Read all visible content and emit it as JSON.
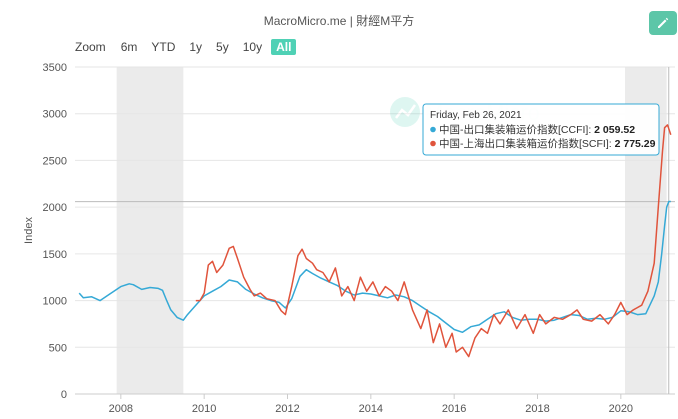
{
  "header": {
    "title": "MacroMicro.me | 財經M平方"
  },
  "edit_icon": "pencil-icon",
  "zoom": {
    "label": "Zoom",
    "options": [
      "6m",
      "YTD",
      "1y",
      "5y",
      "10y",
      "All"
    ],
    "selected": "All"
  },
  "watermark": "MacroMicro",
  "tooltip": {
    "date": "Friday, Feb 26, 2021",
    "rows": [
      {
        "label": "中国-出口集装箱运价指数[CCFI]: ",
        "value": "2 059.52",
        "color": "#35a9d6"
      },
      {
        "label": "中国-上海出口集装箱运价指数[SCFI]: ",
        "value": "2 775.29",
        "color": "#e0543c"
      }
    ]
  },
  "chart_data": {
    "type": "line",
    "ylabel": "Index",
    "ylim": [
      0,
      3500
    ],
    "yticks": [
      "0",
      "500",
      "1000",
      "1500",
      "2000",
      "2500",
      "3000",
      "3500"
    ],
    "xlim": [
      2006.9,
      2021.3
    ],
    "xticks": [
      "2008",
      "2010",
      "2012",
      "2014",
      "2016",
      "2018",
      "2020"
    ],
    "grid": "horizontal",
    "shaded_periods": [
      [
        2007.9,
        2009.5
      ],
      [
        2020.1,
        2021.1
      ]
    ],
    "crosshair": {
      "x": 2021.15,
      "y": 2059.52
    },
    "series": [
      {
        "name": "中国-出口集装箱运价指数[CCFI]",
        "color": "#35a9d6",
        "points": [
          [
            2007.0,
            1080
          ],
          [
            2007.1,
            1030
          ],
          [
            2007.3,
            1040
          ],
          [
            2007.5,
            1000
          ],
          [
            2007.7,
            1060
          ],
          [
            2007.9,
            1120
          ],
          [
            2008.0,
            1150
          ],
          [
            2008.2,
            1180
          ],
          [
            2008.3,
            1170
          ],
          [
            2008.5,
            1120
          ],
          [
            2008.7,
            1140
          ],
          [
            2008.9,
            1130
          ],
          [
            2009.0,
            1110
          ],
          [
            2009.1,
            1000
          ],
          [
            2009.2,
            900
          ],
          [
            2009.35,
            820
          ],
          [
            2009.5,
            790
          ],
          [
            2009.6,
            850
          ],
          [
            2009.8,
            950
          ],
          [
            2010.0,
            1050
          ],
          [
            2010.2,
            1100
          ],
          [
            2010.4,
            1150
          ],
          [
            2010.6,
            1220
          ],
          [
            2010.8,
            1200
          ],
          [
            2011.0,
            1120
          ],
          [
            2011.2,
            1070
          ],
          [
            2011.4,
            1030
          ],
          [
            2011.6,
            1000
          ],
          [
            2011.8,
            980
          ],
          [
            2011.95,
            920
          ],
          [
            2012.1,
            1020
          ],
          [
            2012.3,
            1260
          ],
          [
            2012.45,
            1330
          ],
          [
            2012.6,
            1290
          ],
          [
            2012.8,
            1240
          ],
          [
            2013.0,
            1200
          ],
          [
            2013.2,
            1160
          ],
          [
            2013.4,
            1100
          ],
          [
            2013.6,
            1060
          ],
          [
            2013.8,
            1080
          ],
          [
            2014.0,
            1070
          ],
          [
            2014.2,
            1050
          ],
          [
            2014.4,
            1030
          ],
          [
            2014.6,
            1060
          ],
          [
            2014.8,
            1040
          ],
          [
            2015.0,
            1000
          ],
          [
            2015.2,
            940
          ],
          [
            2015.4,
            880
          ],
          [
            2015.6,
            830
          ],
          [
            2015.8,
            760
          ],
          [
            2016.0,
            690
          ],
          [
            2016.2,
            660
          ],
          [
            2016.4,
            720
          ],
          [
            2016.6,
            740
          ],
          [
            2016.8,
            800
          ],
          [
            2017.0,
            860
          ],
          [
            2017.2,
            880
          ],
          [
            2017.4,
            820
          ],
          [
            2017.6,
            790
          ],
          [
            2017.8,
            800
          ],
          [
            2018.0,
            800
          ],
          [
            2018.2,
            780
          ],
          [
            2018.4,
            790
          ],
          [
            2018.6,
            820
          ],
          [
            2018.8,
            850
          ],
          [
            2019.0,
            840
          ],
          [
            2019.2,
            800
          ],
          [
            2019.4,
            810
          ],
          [
            2019.6,
            800
          ],
          [
            2019.8,
            820
          ],
          [
            2020.0,
            890
          ],
          [
            2020.2,
            880
          ],
          [
            2020.4,
            850
          ],
          [
            2020.6,
            860
          ],
          [
            2020.8,
            1050
          ],
          [
            2020.9,
            1200
          ],
          [
            2020.98,
            1500
          ],
          [
            2021.05,
            1800
          ],
          [
            2021.1,
            2000
          ],
          [
            2021.15,
            2060
          ],
          [
            2021.2,
            2060
          ]
        ]
      },
      {
        "name": "中国-上海出口集装箱运价指数[SCFI]",
        "color": "#e0543c",
        "points": [
          [
            2009.8,
            1000
          ],
          [
            2009.9,
            1000
          ],
          [
            2010.0,
            1080
          ],
          [
            2010.1,
            1380
          ],
          [
            2010.2,
            1420
          ],
          [
            2010.3,
            1300
          ],
          [
            2010.45,
            1380
          ],
          [
            2010.6,
            1560
          ],
          [
            2010.7,
            1580
          ],
          [
            2010.8,
            1450
          ],
          [
            2010.95,
            1250
          ],
          [
            2011.1,
            1120
          ],
          [
            2011.2,
            1050
          ],
          [
            2011.35,
            1080
          ],
          [
            2011.5,
            1020
          ],
          [
            2011.7,
            1000
          ],
          [
            2011.85,
            890
          ],
          [
            2011.95,
            850
          ],
          [
            2012.1,
            1150
          ],
          [
            2012.25,
            1480
          ],
          [
            2012.35,
            1550
          ],
          [
            2012.45,
            1450
          ],
          [
            2012.6,
            1400
          ],
          [
            2012.7,
            1330
          ],
          [
            2012.85,
            1300
          ],
          [
            2013.0,
            1200
          ],
          [
            2013.15,
            1350
          ],
          [
            2013.3,
            1050
          ],
          [
            2013.45,
            1150
          ],
          [
            2013.6,
            1000
          ],
          [
            2013.75,
            1250
          ],
          [
            2013.9,
            1100
          ],
          [
            2014.05,
            1200
          ],
          [
            2014.2,
            1050
          ],
          [
            2014.35,
            1150
          ],
          [
            2014.5,
            1100
          ],
          [
            2014.65,
            1000
          ],
          [
            2014.8,
            1200
          ],
          [
            2015.0,
            900
          ],
          [
            2015.2,
            700
          ],
          [
            2015.35,
            900
          ],
          [
            2015.5,
            550
          ],
          [
            2015.65,
            750
          ],
          [
            2015.8,
            500
          ],
          [
            2015.95,
            650
          ],
          [
            2016.05,
            450
          ],
          [
            2016.2,
            500
          ],
          [
            2016.35,
            400
          ],
          [
            2016.5,
            600
          ],
          [
            2016.65,
            700
          ],
          [
            2016.8,
            650
          ],
          [
            2016.95,
            850
          ],
          [
            2017.1,
            750
          ],
          [
            2017.3,
            900
          ],
          [
            2017.5,
            700
          ],
          [
            2017.7,
            850
          ],
          [
            2017.9,
            650
          ],
          [
            2018.05,
            850
          ],
          [
            2018.2,
            750
          ],
          [
            2018.4,
            820
          ],
          [
            2018.6,
            800
          ],
          [
            2018.8,
            850
          ],
          [
            2018.95,
            900
          ],
          [
            2019.1,
            800
          ],
          [
            2019.3,
            780
          ],
          [
            2019.5,
            850
          ],
          [
            2019.7,
            750
          ],
          [
            2019.85,
            850
          ],
          [
            2020.0,
            980
          ],
          [
            2020.15,
            850
          ],
          [
            2020.3,
            900
          ],
          [
            2020.5,
            950
          ],
          [
            2020.65,
            1100
          ],
          [
            2020.8,
            1400
          ],
          [
            2020.9,
            2000
          ],
          [
            2021.0,
            2600
          ],
          [
            2021.05,
            2850
          ],
          [
            2021.12,
            2880
          ],
          [
            2021.2,
            2775
          ]
        ]
      }
    ]
  }
}
